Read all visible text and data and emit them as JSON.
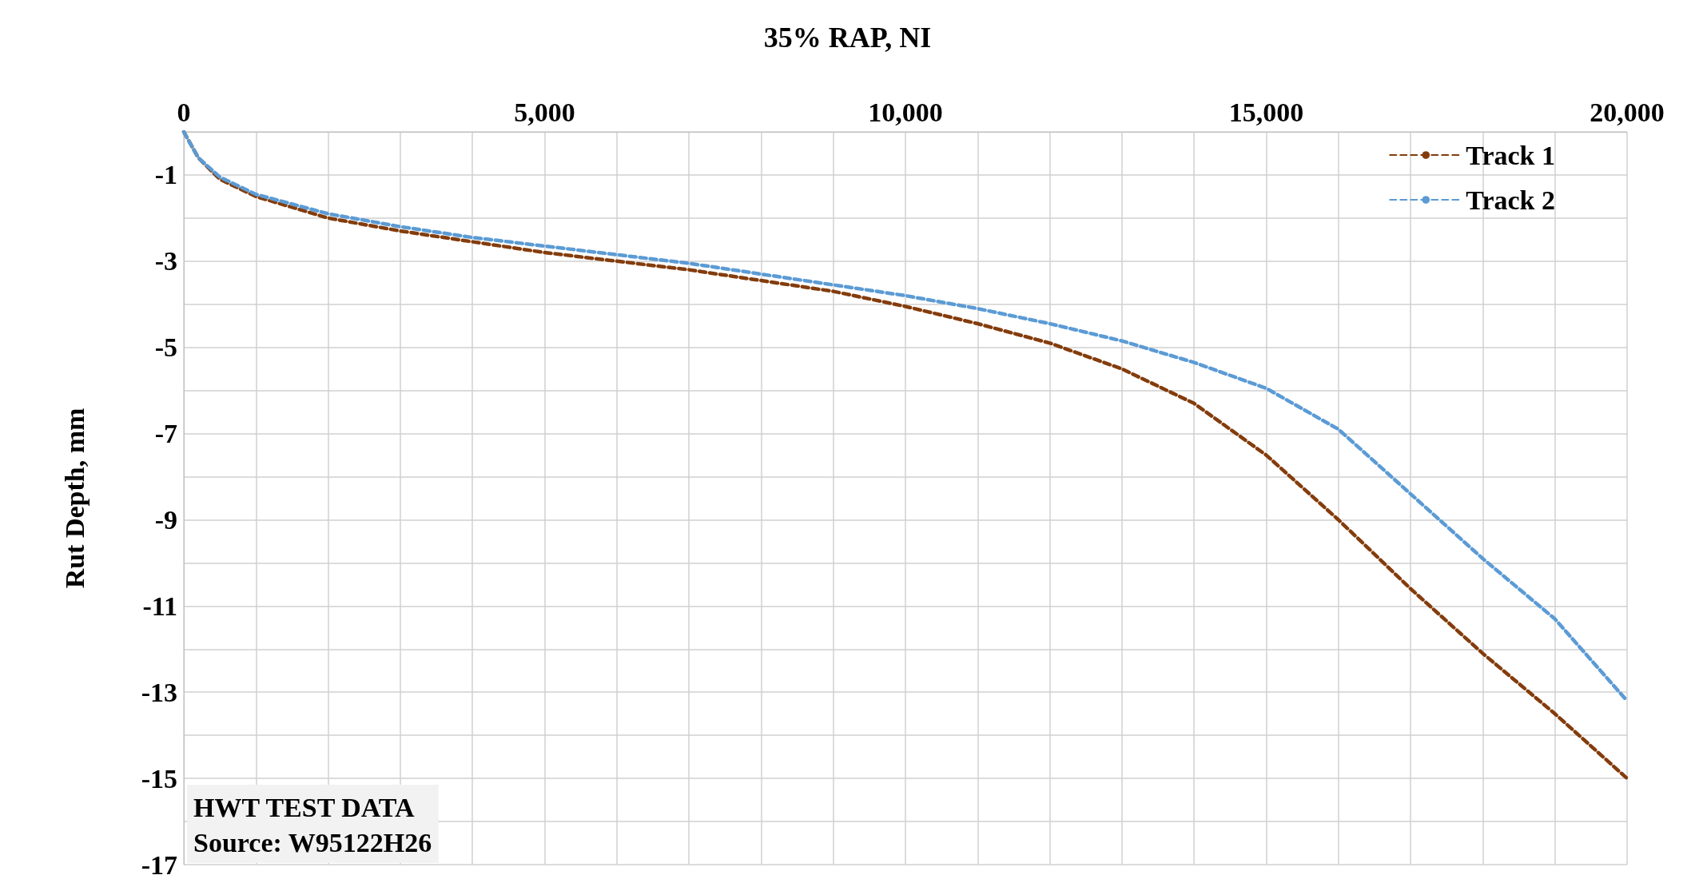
{
  "chart_data": {
    "type": "line",
    "title": "35% RAP, NI",
    "ylabel": "Rut Depth, mm",
    "x": [
      0,
      200,
      500,
      1000,
      2000,
      3000,
      4000,
      5000,
      6000,
      7000,
      8000,
      9000,
      10000,
      11000,
      12000,
      13000,
      14000,
      15000,
      16000,
      17000,
      18000,
      19000,
      20000
    ],
    "series": [
      {
        "name": "Track 1",
        "color": "#843c0c",
        "values": [
          0,
          -0.6,
          -1.1,
          -1.5,
          -2.0,
          -2.3,
          -2.55,
          -2.8,
          -3.0,
          -3.2,
          -3.45,
          -3.7,
          -4.05,
          -4.45,
          -4.9,
          -5.5,
          -6.3,
          -7.5,
          -9.0,
          -10.6,
          -12.1,
          -13.5,
          -15.0
        ]
      },
      {
        "name": "Track 2",
        "color": "#5b9bd5",
        "values": [
          0,
          -0.6,
          -1.05,
          -1.45,
          -1.9,
          -2.2,
          -2.45,
          -2.65,
          -2.85,
          -3.05,
          -3.3,
          -3.55,
          -3.8,
          -4.1,
          -4.45,
          -4.85,
          -5.35,
          -5.95,
          -6.9,
          -8.4,
          -9.9,
          -11.3,
          -13.2
        ]
      }
    ],
    "xlim": [
      0,
      20000
    ],
    "xticks": [
      0,
      {
        "value": 1000,
        "label": null
      },
      {
        "value": 2000,
        "label": null
      },
      {
        "value": 3000,
        "label": null
      },
      {
        "value": 4000,
        "label": null
      },
      {
        "value": 5000,
        "label": "5,000"
      },
      {
        "value": 6000,
        "label": null
      },
      {
        "value": 7000,
        "label": null
      },
      {
        "value": 8000,
        "label": null
      },
      {
        "value": 9000,
        "label": null
      },
      {
        "value": 10000,
        "label": "10,000"
      },
      {
        "value": 11000,
        "label": null
      },
      {
        "value": 12000,
        "label": null
      },
      {
        "value": 13000,
        "label": null
      },
      {
        "value": 14000,
        "label": null
      },
      {
        "value": 15000,
        "label": "15,000"
      },
      {
        "value": 16000,
        "label": null
      },
      {
        "value": 17000,
        "label": null
      },
      {
        "value": 18000,
        "label": null
      },
      {
        "value": 19000,
        "label": null
      },
      {
        "value": 20000,
        "label": "20,000"
      }
    ],
    "ylim": [
      -17,
      0
    ],
    "yticks": [
      -17,
      {
        "value": -16,
        "label": null
      },
      -15,
      {
        "value": -14,
        "label": null
      },
      -13,
      {
        "value": -12,
        "label": null
      },
      -11,
      {
        "value": -10,
        "label": null
      },
      -9,
      {
        "value": -8,
        "label": null
      },
      -7,
      {
        "value": -6,
        "label": null
      },
      -5,
      {
        "value": -4,
        "label": null
      },
      -3,
      {
        "value": -2,
        "label": null
      },
      -1,
      {
        "value": 0,
        "label": null
      }
    ],
    "annotations": [
      "HWT TEST DATA",
      "Source: W95122H26"
    ],
    "grid": true,
    "legend": "top right",
    "marker": "none",
    "line_style": "dashed"
  }
}
